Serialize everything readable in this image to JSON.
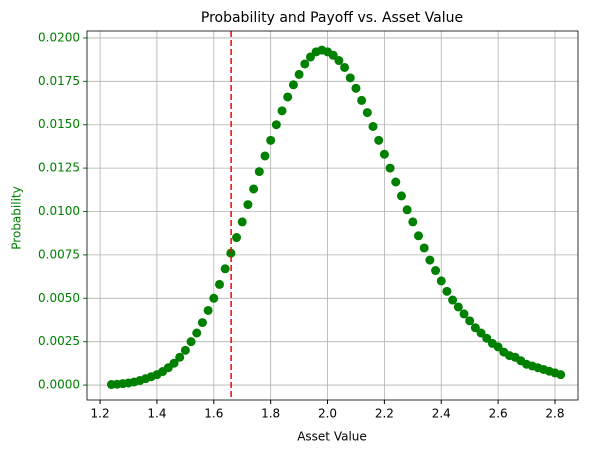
{
  "chart_data": {
    "type": "scatter",
    "title": "Probability and Payoff vs. Asset Value",
    "x_label": "Asset Value",
    "y_label": "Probability",
    "color": "green",
    "axis_color": "green",
    "grid": true,
    "x": [
      1.24,
      1.26,
      1.28,
      1.3,
      1.32,
      1.34,
      1.36,
      1.38,
      1.4,
      1.42,
      1.44,
      1.46,
      1.48,
      1.5,
      1.52,
      1.54,
      1.56,
      1.58,
      1.6,
      1.62,
      1.64,
      1.66,
      1.68,
      1.7,
      1.72,
      1.74,
      1.76,
      1.78,
      1.8,
      1.82,
      1.84,
      1.86,
      1.88,
      1.9,
      1.92,
      1.94,
      1.96,
      1.98,
      2.0,
      2.02,
      2.04,
      2.06,
      2.08,
      2.1,
      2.12,
      2.14,
      2.16,
      2.18,
      2.2,
      2.22,
      2.24,
      2.26,
      2.28,
      2.3,
      2.32,
      2.34,
      2.36,
      2.38,
      2.4,
      2.42,
      2.44,
      2.46,
      2.48,
      2.5,
      2.52,
      2.54,
      2.56,
      2.58,
      2.6,
      2.62,
      2.64,
      2.66,
      2.68,
      2.7,
      2.72,
      2.74,
      2.76,
      2.78,
      2.8,
      2.82
    ],
    "values": [
      3e-05,
      5e-05,
      8e-05,
      0.00012,
      0.00018,
      0.00026,
      0.00037,
      0.00048,
      0.0006,
      0.00078,
      0.001,
      0.00126,
      0.0016,
      0.002,
      0.0025,
      0.003,
      0.0036,
      0.0043,
      0.005,
      0.0058,
      0.0067,
      0.0076,
      0.0085,
      0.0094,
      0.0104,
      0.0113,
      0.0123,
      0.0132,
      0.0141,
      0.015,
      0.0158,
      0.0166,
      0.0173,
      0.0179,
      0.0185,
      0.0189,
      0.0192,
      0.0193,
      0.0192,
      0.019,
      0.0187,
      0.0183,
      0.0177,
      0.0171,
      0.0164,
      0.0157,
      0.0149,
      0.0141,
      0.0133,
      0.0125,
      0.0117,
      0.0109,
      0.0101,
      0.0094,
      0.0086,
      0.0079,
      0.0072,
      0.0066,
      0.006,
      0.0054,
      0.0049,
      0.0045,
      0.0041,
      0.0037,
      0.0033,
      0.003,
      0.0027,
      0.0024,
      0.0022,
      0.0019,
      0.0017,
      0.0016,
      0.0014,
      0.0012,
      0.0011,
      0.001,
      0.0009,
      0.0008,
      0.0007,
      0.0006
    ],
    "vline": {
      "x": 1.661,
      "color": "red"
    },
    "xlim": [
      1.154,
      2.881
    ],
    "xticks": [
      1.2,
      1.4,
      1.6,
      1.8,
      {
        "value": 2,
        "label": "2.0"
      },
      2.2,
      2.4,
      2.6,
      2.8
    ],
    "ylim": [
      -0.00086,
      0.0204
    ],
    "yticks": [
      {
        "value": 0,
        "label": "0.0000"
      },
      {
        "value": 0.0025,
        "label": "0.0025"
      },
      {
        "value": 0.005,
        "label": "0.0050"
      },
      {
        "value": 0.0075,
        "label": "0.0075"
      },
      {
        "value": 0.01,
        "label": "0.0100"
      },
      {
        "value": 0.0125,
        "label": "0.0125"
      },
      {
        "value": 0.015,
        "label": "0.0150"
      },
      {
        "value": 0.0175,
        "label": "0.0175"
      },
      {
        "value": 0.02,
        "label": "0.0200"
      }
    ]
  }
}
